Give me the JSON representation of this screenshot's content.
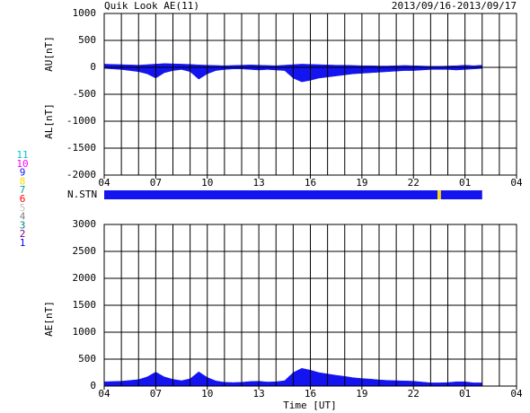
{
  "chart_data": [
    {
      "type": "area",
      "title": "Quik Look AE(11)",
      "subtitle": "2013/09/16-2013/09/17",
      "x": [
        0,
        0.5,
        1,
        1.5,
        2,
        2.5,
        3,
        3.5,
        4,
        4.5,
        5,
        5.5,
        6,
        6.5,
        7,
        7.5,
        8,
        8.5,
        9,
        9.5,
        10,
        10.5,
        11,
        11.5,
        12,
        12.5,
        13,
        13.5,
        14,
        14.5,
        15,
        15.5,
        16,
        16.5,
        17,
        17.5,
        18,
        18.5,
        19,
        19.5,
        20,
        20.5,
        21,
        21.5,
        22
      ],
      "series": [
        {
          "ylabel": "AU[nT]",
          "color": "#1414f0",
          "values": [
            60,
            55,
            50,
            45,
            40,
            50,
            60,
            70,
            65,
            60,
            55,
            45,
            40,
            35,
            30,
            35,
            40,
            45,
            40,
            35,
            30,
            40,
            50,
            60,
            55,
            50,
            45,
            40,
            40,
            35,
            30,
            30,
            25,
            25,
            30,
            35,
            30,
            25,
            20,
            20,
            25,
            30,
            40,
            30,
            40
          ]
        },
        {
          "ylabel": "AL[nT]",
          "color": "#1414f0",
          "values": [
            -20,
            -30,
            -40,
            -60,
            -80,
            -120,
            -200,
            -100,
            -60,
            -40,
            -80,
            -220,
            -120,
            -60,
            -40,
            -30,
            -30,
            -40,
            -50,
            -40,
            -50,
            -60,
            -200,
            -270,
            -240,
            -200,
            -180,
            -160,
            -140,
            -120,
            -110,
            -100,
            -90,
            -80,
            -70,
            -60,
            -60,
            -50,
            -40,
            -40,
            -40,
            -50,
            -40,
            -30,
            -20
          ]
        }
      ],
      "xlim": [
        0,
        24
      ],
      "xticks": [
        {
          "value": 0,
          "label": "04"
        },
        {
          "value": 3,
          "label": "07"
        },
        {
          "value": 6,
          "label": "10"
        },
        {
          "value": 9,
          "label": "13"
        },
        {
          "value": 12,
          "label": "16"
        },
        {
          "value": 15,
          "label": "19"
        },
        {
          "value": 18,
          "label": "22"
        },
        {
          "value": 21,
          "label": "01"
        },
        {
          "value": 24,
          "label": "04"
        }
      ],
      "xgrid": [
        1,
        2,
        3,
        4,
        5,
        6,
        7,
        8,
        9,
        10,
        11,
        12,
        13,
        14,
        15,
        16,
        17,
        18,
        19,
        20,
        21,
        22,
        23
      ],
      "ylim": [
        -2000,
        1000
      ],
      "yticks": [
        -2000,
        -1500,
        -1000,
        -500,
        0,
        500,
        1000
      ]
    },
    {
      "type": "timeline",
      "label": "N.STN",
      "x": [
        0,
        19.4,
        19.6
      ],
      "xend": 22,
      "values": [
        9,
        8,
        9
      ],
      "xlim": [
        0,
        24
      ],
      "station_counts": [
        1,
        2,
        3,
        4,
        5,
        6,
        7,
        8,
        9,
        10,
        11
      ],
      "station_colors": [
        "#0000ff",
        "#800080",
        "#008080",
        "#808080",
        "#c0c0c0",
        "#ff0000",
        "#00a0a0",
        "#ffd700",
        "#1414f0",
        "#ff00ff",
        "#00c8c8"
      ]
    },
    {
      "type": "area",
      "xlabel": "Time [UT]",
      "x": [
        0,
        0.5,
        1,
        1.5,
        2,
        2.5,
        3,
        3.5,
        4,
        4.5,
        5,
        5.5,
        6,
        6.5,
        7,
        7.5,
        8,
        8.5,
        9,
        9.5,
        10,
        10.5,
        11,
        11.5,
        12,
        12.5,
        13,
        13.5,
        14,
        14.5,
        15,
        15.5,
        16,
        16.5,
        17,
        17.5,
        18,
        18.5,
        19,
        19.5,
        20,
        20.5,
        21,
        21.5,
        22
      ],
      "series": [
        {
          "ylabel": "AE[nT]",
          "color": "#1414f0",
          "values": [
            80,
            85,
            90,
            105,
            120,
            170,
            260,
            170,
            125,
            100,
            135,
            265,
            160,
            95,
            70,
            65,
            70,
            85,
            90,
            75,
            80,
            100,
            250,
            330,
            295,
            250,
            225,
            200,
            180,
            155,
            140,
            130,
            115,
            105,
            100,
            95,
            90,
            75,
            60,
            60,
            65,
            80,
            80,
            60,
            60
          ]
        }
      ],
      "xlim": [
        0,
        24
      ],
      "xticks": [
        {
          "value": 0,
          "label": "04"
        },
        {
          "value": 3,
          "label": "07"
        },
        {
          "value": 6,
          "label": "10"
        },
        {
          "value": 9,
          "label": "13"
        },
        {
          "value": 12,
          "label": "16"
        },
        {
          "value": 15,
          "label": "19"
        },
        {
          "value": 18,
          "label": "22"
        },
        {
          "value": 21,
          "label": "01"
        },
        {
          "value": 24,
          "label": "04"
        }
      ],
      "xgrid": [
        1,
        2,
        3,
        4,
        5,
        6,
        7,
        8,
        9,
        10,
        11,
        12,
        13,
        14,
        15,
        16,
        17,
        18,
        19,
        20,
        21,
        22,
        23
      ],
      "ylim": [
        0,
        3000
      ],
      "yticks": [
        0,
        500,
        1000,
        1500,
        2000,
        2500,
        3000
      ]
    }
  ]
}
